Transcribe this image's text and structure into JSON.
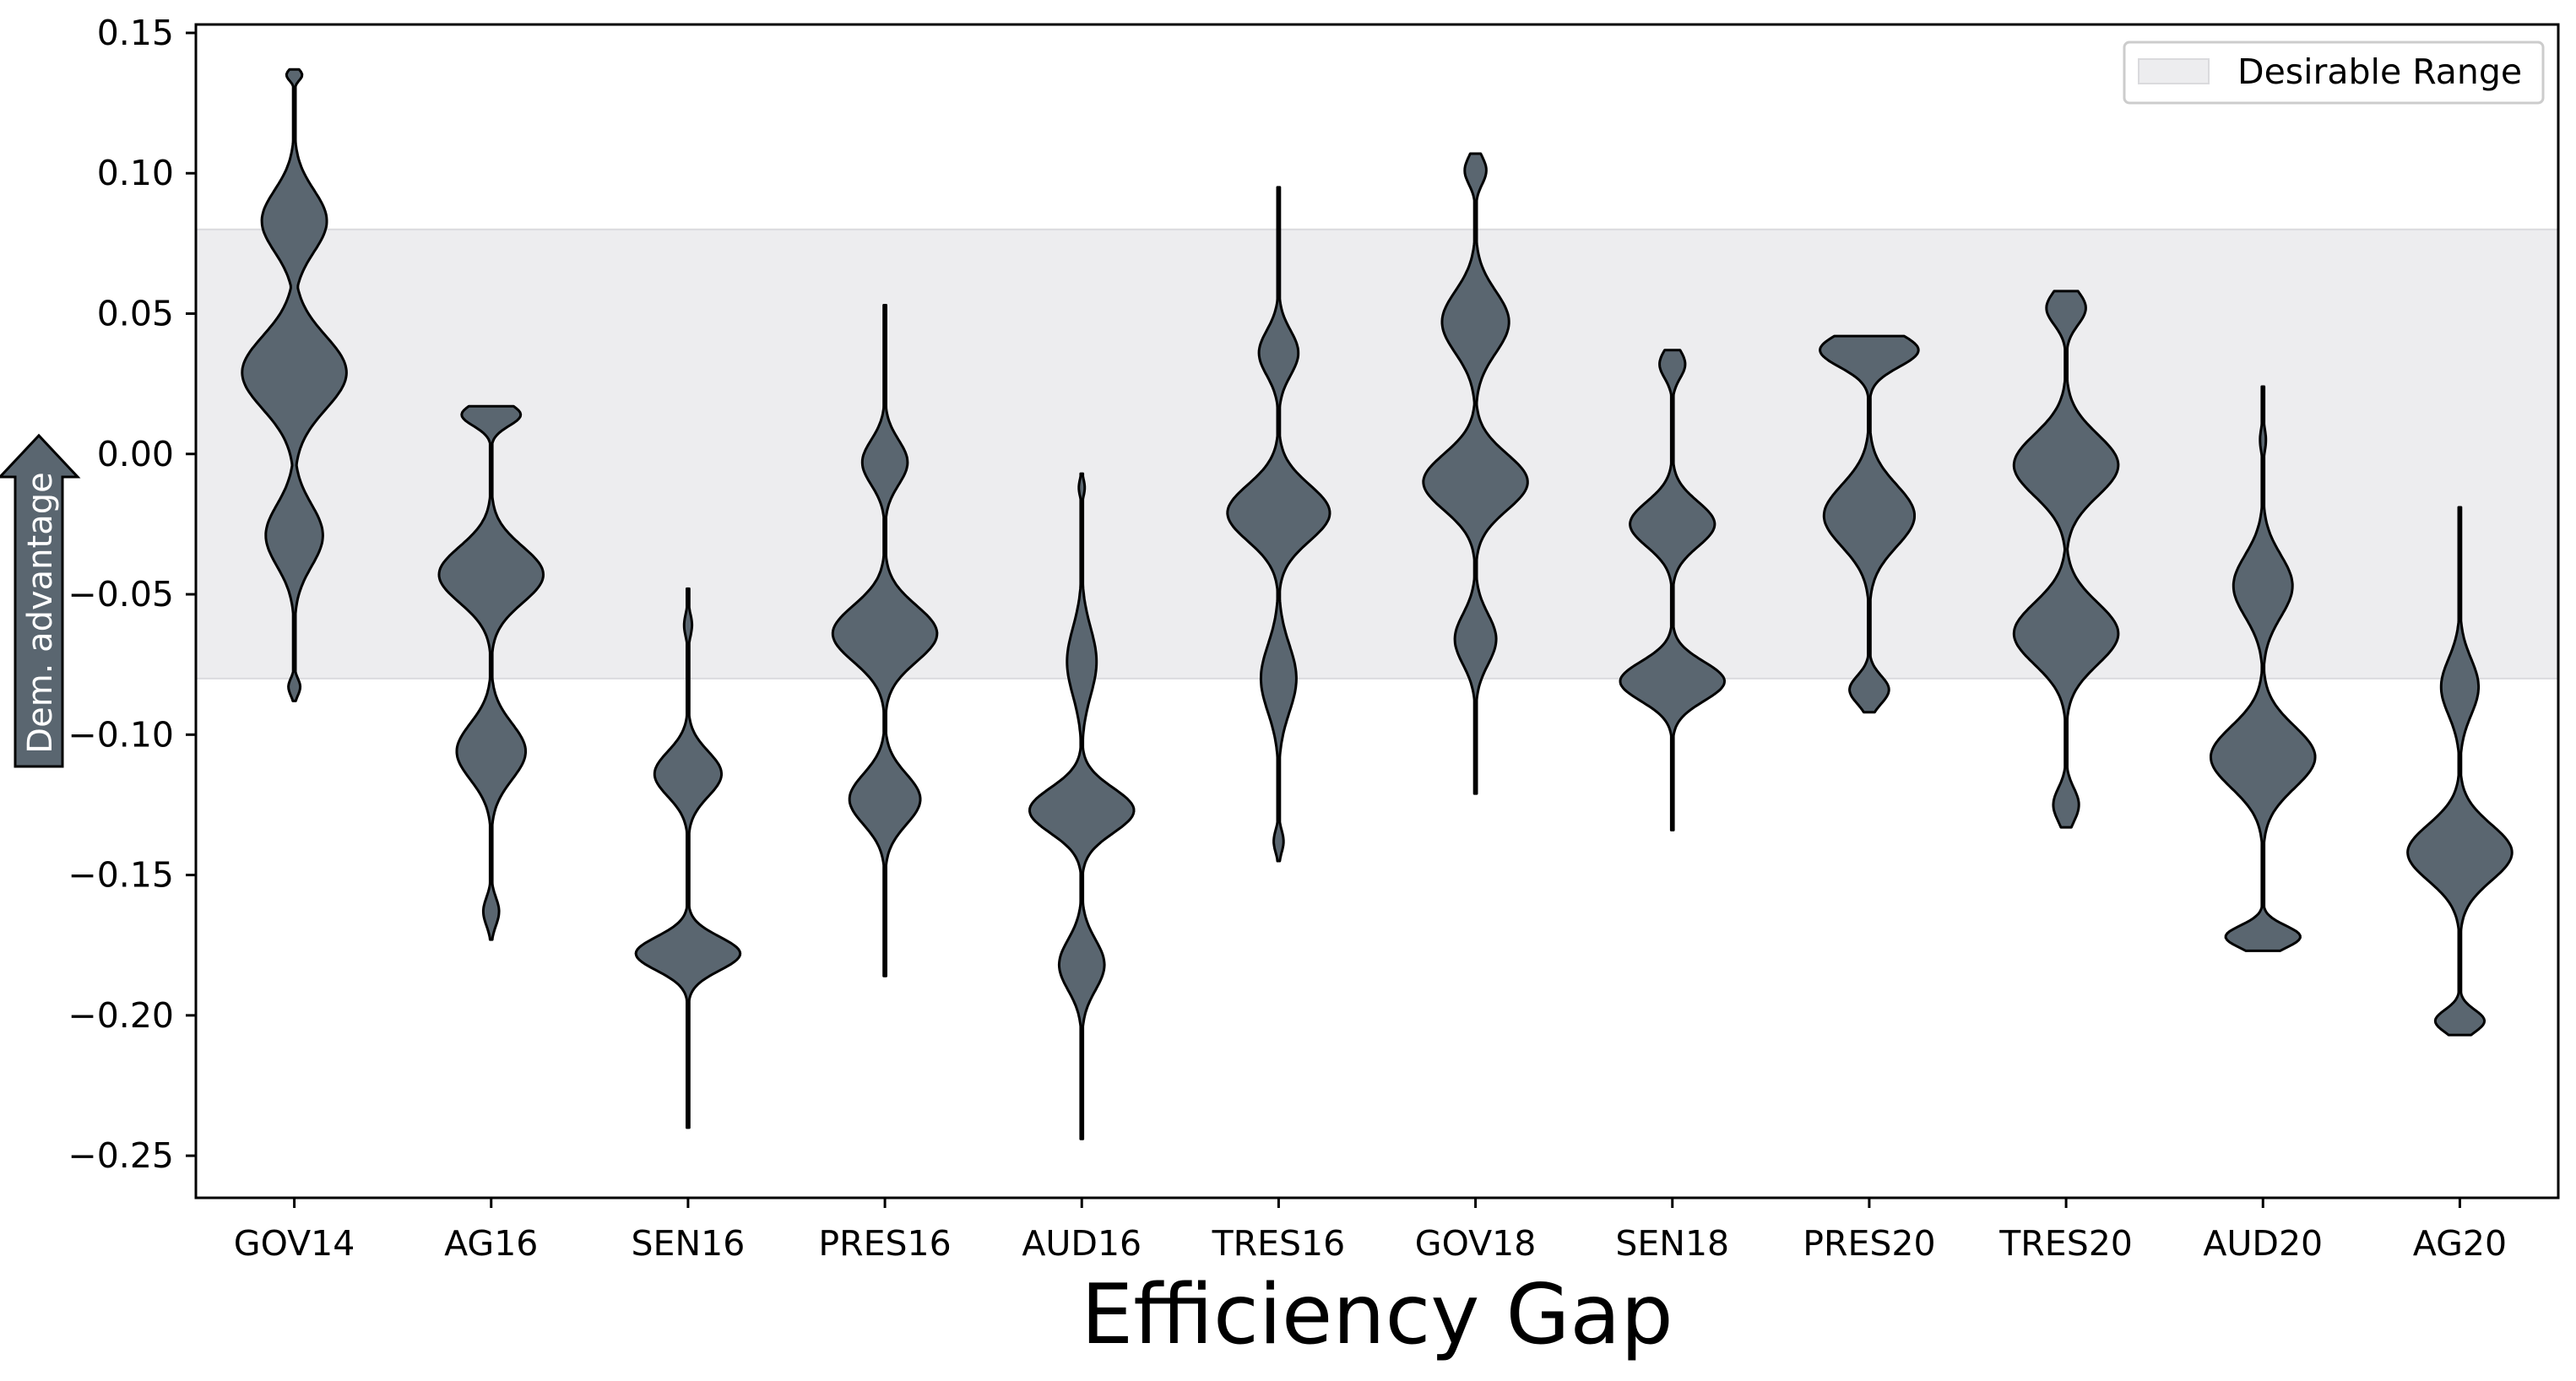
{
  "chart_data": {
    "type": "violin",
    "xlabel": "Efficiency Gap",
    "categories": [
      "GOV14",
      "AG16",
      "SEN16",
      "PRES16",
      "AUD16",
      "TRES16",
      "GOV18",
      "SEN18",
      "PRES20",
      "TRES20",
      "AUD20",
      "AG20"
    ],
    "ylim": [
      -0.265,
      0.153
    ],
    "yticks": [
      0.15,
      0.1,
      0.05,
      0.0,
      -0.05,
      -0.1,
      -0.15,
      -0.2,
      -0.25
    ],
    "ytick_labels": [
      "0.15",
      "0.10",
      "0.05",
      "0.00",
      "−0.05",
      "−0.10",
      "−0.15",
      "−0.20",
      "−0.25"
    ],
    "desirable_range": [
      -0.08,
      0.08
    ],
    "legend": {
      "label": "Desirable Range",
      "placement": "top-right"
    },
    "arrow_label": "Dem. advantage",
    "colors": {
      "violin": "#5a6670",
      "band": "#ededef",
      "edge": "#000000"
    },
    "grid": false,
    "series": [
      {
        "name": "GOV14",
        "min": -0.088,
        "max": 0.137,
        "modes": [
          {
            "y": 0.135,
            "w": 0.08,
            "s": 0.002
          },
          {
            "y": 0.083,
            "w": 0.33,
            "s": 0.011
          },
          {
            "y": 0.029,
            "w": 0.53,
            "s": 0.013
          },
          {
            "y": -0.029,
            "w": 0.29,
            "s": 0.011
          },
          {
            "y": -0.083,
            "w": 0.06,
            "s": 0.003
          }
        ]
      },
      {
        "name": "AG16",
        "min": -0.173,
        "max": 0.017,
        "modes": [
          {
            "y": 0.014,
            "w": 0.3,
            "s": 0.004
          },
          {
            "y": -0.043,
            "w": 0.53,
            "s": 0.01
          },
          {
            "y": -0.106,
            "w": 0.35,
            "s": 0.01
          },
          {
            "y": -0.163,
            "w": 0.08,
            "s": 0.005
          }
        ]
      },
      {
        "name": "SEN16",
        "min": -0.24,
        "max": -0.048,
        "modes": [
          {
            "y": -0.061,
            "w": 0.04,
            "s": 0.004
          },
          {
            "y": -0.114,
            "w": 0.34,
            "s": 0.008
          },
          {
            "y": -0.178,
            "w": 0.53,
            "s": 0.006
          }
        ]
      },
      {
        "name": "PRES16",
        "min": -0.186,
        "max": 0.053,
        "modes": [
          {
            "y": -0.003,
            "w": 0.23,
            "s": 0.008
          },
          {
            "y": -0.064,
            "w": 0.53,
            "s": 0.01
          },
          {
            "y": -0.123,
            "w": 0.36,
            "s": 0.009
          }
        ]
      },
      {
        "name": "AUD16",
        "min": -0.244,
        "max": -0.007,
        "modes": [
          {
            "y": -0.012,
            "w": 0.03,
            "s": 0.003
          },
          {
            "y": -0.074,
            "w": 0.15,
            "s": 0.012
          },
          {
            "y": -0.127,
            "w": 0.53,
            "s": 0.008
          },
          {
            "y": -0.182,
            "w": 0.23,
            "s": 0.009
          }
        ]
      },
      {
        "name": "TRES16",
        "min": -0.145,
        "max": 0.095,
        "modes": [
          {
            "y": 0.036,
            "w": 0.2,
            "s": 0.008
          },
          {
            "y": -0.021,
            "w": 0.52,
            "s": 0.01
          },
          {
            "y": -0.08,
            "w": 0.18,
            "s": 0.012
          },
          {
            "y": -0.138,
            "w": 0.05,
            "s": 0.004
          }
        ]
      },
      {
        "name": "GOV18",
        "min": -0.121,
        "max": 0.107,
        "modes": [
          {
            "y": 0.101,
            "w": 0.11,
            "s": 0.005
          },
          {
            "y": 0.047,
            "w": 0.34,
            "s": 0.011
          },
          {
            "y": -0.01,
            "w": 0.53,
            "s": 0.01
          },
          {
            "y": -0.066,
            "w": 0.21,
            "s": 0.009
          }
        ]
      },
      {
        "name": "SEN18",
        "min": -0.134,
        "max": 0.037,
        "modes": [
          {
            "y": 0.032,
            "w": 0.13,
            "s": 0.005
          },
          {
            "y": -0.025,
            "w": 0.43,
            "s": 0.008
          },
          {
            "y": -0.081,
            "w": 0.53,
            "s": 0.007
          }
        ]
      },
      {
        "name": "PRES20",
        "min": -0.092,
        "max": 0.042,
        "modes": [
          {
            "y": 0.037,
            "w": 0.5,
            "s": 0.006
          },
          {
            "y": -0.022,
            "w": 0.46,
            "s": 0.011
          },
          {
            "y": -0.084,
            "w": 0.2,
            "s": 0.005
          }
        ]
      },
      {
        "name": "TRES20",
        "min": -0.133,
        "max": 0.058,
        "modes": [
          {
            "y": 0.052,
            "w": 0.2,
            "s": 0.006
          },
          {
            "y": -0.004,
            "w": 0.53,
            "s": 0.011
          },
          {
            "y": -0.064,
            "w": 0.53,
            "s": 0.011
          },
          {
            "y": -0.125,
            "w": 0.13,
            "s": 0.006
          }
        ]
      },
      {
        "name": "AUD20",
        "min": -0.177,
        "max": 0.024,
        "modes": [
          {
            "y": 0.005,
            "w": 0.03,
            "s": 0.004
          },
          {
            "y": -0.047,
            "w": 0.3,
            "s": 0.011
          },
          {
            "y": -0.108,
            "w": 0.53,
            "s": 0.011
          },
          {
            "y": -0.172,
            "w": 0.38,
            "s": 0.004
          }
        ]
      },
      {
        "name": "AG20",
        "min": -0.207,
        "max": -0.019,
        "modes": [
          {
            "y": -0.083,
            "w": 0.19,
            "s": 0.01
          },
          {
            "y": -0.142,
            "w": 0.53,
            "s": 0.01
          },
          {
            "y": -0.202,
            "w": 0.25,
            "s": 0.004
          }
        ]
      }
    ]
  }
}
